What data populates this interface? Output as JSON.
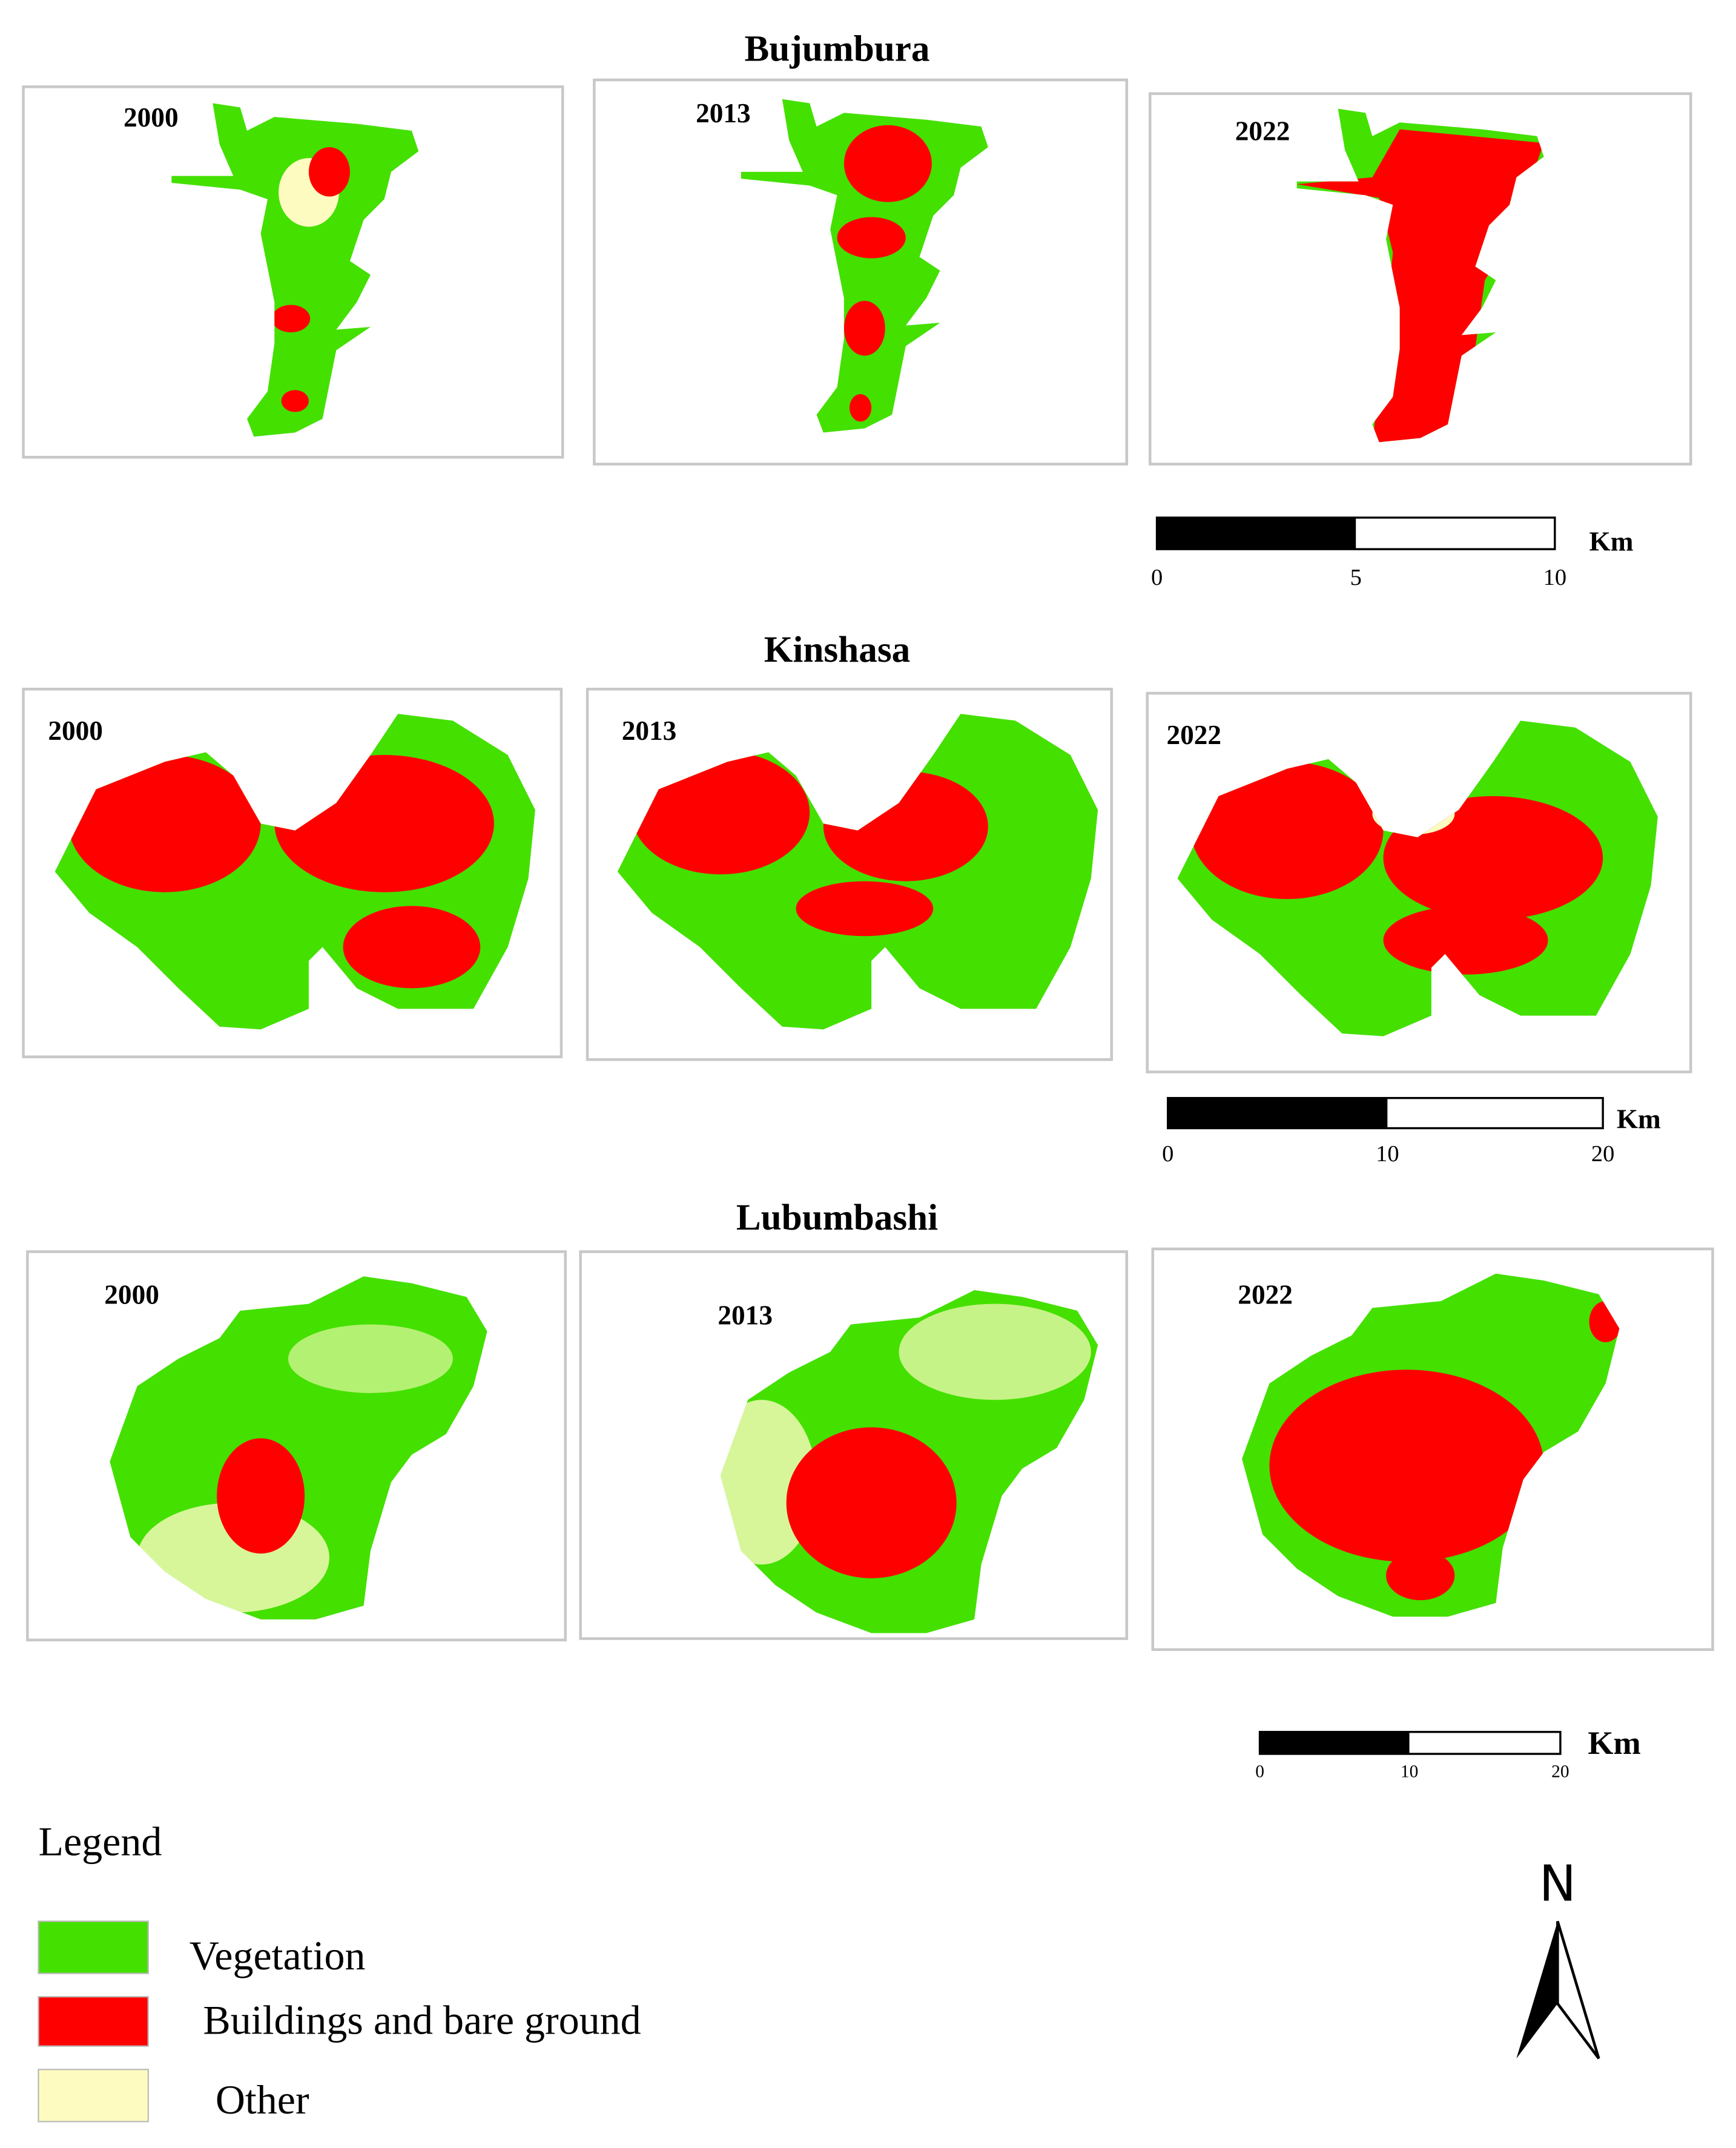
{
  "sections": [
    {
      "title": "Bujumbura",
      "panels": [
        "2000",
        "2013",
        "2022"
      ],
      "scale_bar": {
        "ticks": [
          0,
          5,
          10
        ],
        "unit": "Km"
      }
    },
    {
      "title": "Kinshasa",
      "panels": [
        "2000",
        "2013",
        "2022"
      ],
      "scale_bar": {
        "ticks": [
          0,
          10,
          20
        ],
        "unit": "Km"
      }
    },
    {
      "title": "Lubumbashi",
      "panels": [
        "2000",
        "2013",
        "2022"
      ],
      "scale_bar": {
        "ticks": [
          0,
          10,
          20
        ],
        "unit": "Km"
      }
    }
  ],
  "legend": {
    "title": "Legend",
    "items": [
      {
        "label": "Vegetation",
        "color": "#44e000"
      },
      {
        "label": "Buildings and bare ground",
        "color": "#ff0000"
      },
      {
        "label": "Other",
        "color": "#fdfbc0"
      }
    ]
  },
  "north_label": "N"
}
